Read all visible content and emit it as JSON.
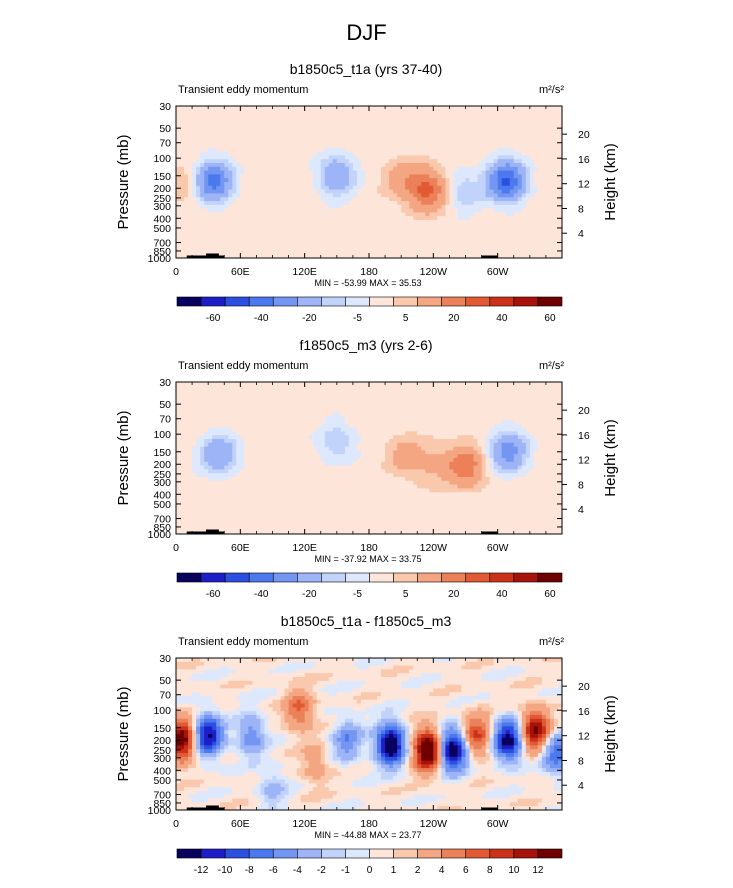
{
  "page": {
    "title": "DJF"
  },
  "colors": {
    "colorbar_a": [
      "#08005e",
      "#1e1ec8",
      "#2b4fe0",
      "#4d79ef",
      "#7496f3",
      "#9db4f7",
      "#c2d3fb",
      "#dde8fd",
      "#fde6d9",
      "#fac8ad",
      "#f4a683",
      "#ec8058",
      "#e25a34",
      "#cc3219",
      "#a7120a",
      "#6e0000"
    ],
    "colorbar_b": [
      "#08005e",
      "#1e1ec8",
      "#2b4fe0",
      "#4d79ef",
      "#7496f3",
      "#9db4f7",
      "#c2d3fb",
      "#dde8fd",
      "#fde6d9",
      "#fac8ad",
      "#f4a683",
      "#ec8058",
      "#e25a34",
      "#cc3219",
      "#a7120a",
      "#6e0000"
    ]
  },
  "chart_data": [
    {
      "type": "heatmap",
      "title": "b1850c5_t1a (yrs 37-40)",
      "subtitle_left": "Transient eddy momentum",
      "units": "m²/s²",
      "ylabel": "Pressure (mb)",
      "ylabel_right": "Height (km)",
      "x_ticks": [
        "0",
        "60E",
        "120E",
        "180",
        "120W",
        "60W"
      ],
      "x_values": [
        0,
        60,
        120,
        180,
        240,
        300
      ],
      "xlim": [
        0,
        360
      ],
      "y_ticks": [
        "30",
        "50",
        "70",
        "100",
        "150",
        "200",
        "250",
        "300",
        "400",
        "500",
        "700",
        "850",
        "1000"
      ],
      "y_values": [
        30,
        50,
        70,
        100,
        150,
        200,
        250,
        300,
        400,
        500,
        700,
        850,
        1000
      ],
      "ylim": [
        1000,
        30
      ],
      "y_scale": "log",
      "height_ticks": [
        "20",
        "16",
        "12",
        "8",
        "4"
      ],
      "height_values": [
        20,
        16,
        12,
        8,
        4
      ],
      "stats": "MIN = -53.99  MAX = 35.53",
      "colorbar_labels": [
        "-60",
        "-40",
        "-20",
        "-5",
        "5",
        "20",
        "40",
        "60"
      ],
      "colorbar_palette": "colorbar_a",
      "field_set": "a",
      "features": [
        {
          "lon": 35,
          "p": 170,
          "value": -38
        },
        {
          "lon": 150,
          "p": 150,
          "value": -22
        },
        {
          "lon": 212,
          "p": 165,
          "value": 13
        },
        {
          "lon": 235,
          "p": 210,
          "value": 30
        },
        {
          "lon": 268,
          "p": 215,
          "value": -12
        },
        {
          "lon": 308,
          "p": 170,
          "value": -45
        },
        {
          "lon": 10,
          "p": 185,
          "value": 8
        }
      ]
    },
    {
      "type": "heatmap",
      "title": "f1850c5_m3 (yrs 2-6)",
      "subtitle_left": "Transient eddy momentum",
      "units": "m²/s²",
      "ylabel": "Pressure (mb)",
      "ylabel_right": "Height (km)",
      "x_ticks": [
        "0",
        "60E",
        "120E",
        "180",
        "120W",
        "60W"
      ],
      "x_values": [
        0,
        60,
        120,
        180,
        240,
        300
      ],
      "xlim": [
        0,
        360
      ],
      "y_ticks": [
        "30",
        "50",
        "70",
        "100",
        "150",
        "200",
        "250",
        "300",
        "400",
        "500",
        "700",
        "850",
        "1000"
      ],
      "y_values": [
        30,
        50,
        70,
        100,
        150,
        200,
        250,
        300,
        400,
        500,
        700,
        850,
        1000
      ],
      "ylim": [
        1000,
        30
      ],
      "y_scale": "log",
      "height_ticks": [
        "20",
        "16",
        "12",
        "8",
        "4"
      ],
      "height_values": [
        20,
        16,
        12,
        8,
        4
      ],
      "stats": "MIN = -37.92  MAX = 33.75",
      "colorbar_labels": [
        "-60",
        "-40",
        "-20",
        "-5",
        "5",
        "20",
        "40",
        "60"
      ],
      "colorbar_palette": "colorbar_a",
      "field_set": "b",
      "features": [
        {
          "lon": 40,
          "p": 160,
          "value": -22
        },
        {
          "lon": 150,
          "p": 120,
          "value": -12
        },
        {
          "lon": 215,
          "p": 170,
          "value": 12
        },
        {
          "lon": 242,
          "p": 200,
          "value": 8
        },
        {
          "lon": 270,
          "p": 210,
          "value": 25
        },
        {
          "lon": 310,
          "p": 150,
          "value": -28
        }
      ]
    },
    {
      "type": "heatmap",
      "title": "b1850c5_t1a - f1850c5_m3",
      "subtitle_left": "Transient eddy momentum",
      "units": "m²/s²",
      "ylabel": "Pressure (mb)",
      "ylabel_right": "Height (km)",
      "x_ticks": [
        "0",
        "60E",
        "120E",
        "180",
        "120W",
        "60W"
      ],
      "x_values": [
        0,
        60,
        120,
        180,
        240,
        300
      ],
      "xlim": [
        0,
        360
      ],
      "y_ticks": [
        "30",
        "50",
        "70",
        "100",
        "150",
        "200",
        "250",
        "300",
        "400",
        "500",
        "700",
        "850",
        "1000"
      ],
      "y_values": [
        30,
        50,
        70,
        100,
        150,
        200,
        250,
        300,
        400,
        500,
        700,
        850,
        1000
      ],
      "ylim": [
        1000,
        30
      ],
      "y_scale": "log",
      "height_ticks": [
        "20",
        "16",
        "12",
        "8",
        "4"
      ],
      "height_values": [
        20,
        16,
        12,
        8,
        4
      ],
      "stats": "MIN = -44.88  MAX = 23.77",
      "colorbar_labels": [
        "-12",
        "-10",
        "-8",
        "-6",
        "-4",
        "-2",
        "-1",
        "0",
        "1",
        "2",
        "4",
        "6",
        "8",
        "10",
        "12"
      ],
      "colorbar_palette": "colorbar_b",
      "field_set": "c",
      "features": [
        {
          "lon": 5,
          "p": 200,
          "value": 14
        },
        {
          "lon": 30,
          "p": 180,
          "value": -13
        },
        {
          "lon": 200,
          "p": 220,
          "value": -16
        },
        {
          "lon": 235,
          "p": 250,
          "value": 16
        },
        {
          "lon": 258,
          "p": 250,
          "value": -16
        },
        {
          "lon": 280,
          "p": 180,
          "value": 8
        },
        {
          "lon": 310,
          "p": 200,
          "value": -14
        },
        {
          "lon": 335,
          "p": 160,
          "value": 12
        },
        {
          "lon": 355,
          "p": 270,
          "value": -8
        },
        {
          "lon": 70,
          "p": 180,
          "value": -6
        },
        {
          "lon": 115,
          "p": 100,
          "value": 6
        },
        {
          "lon": 160,
          "p": 200,
          "value": -6
        },
        {
          "lon": 130,
          "p": 350,
          "value": 3
        },
        {
          "lon": 90,
          "p": 600,
          "value": -3
        }
      ]
    }
  ]
}
